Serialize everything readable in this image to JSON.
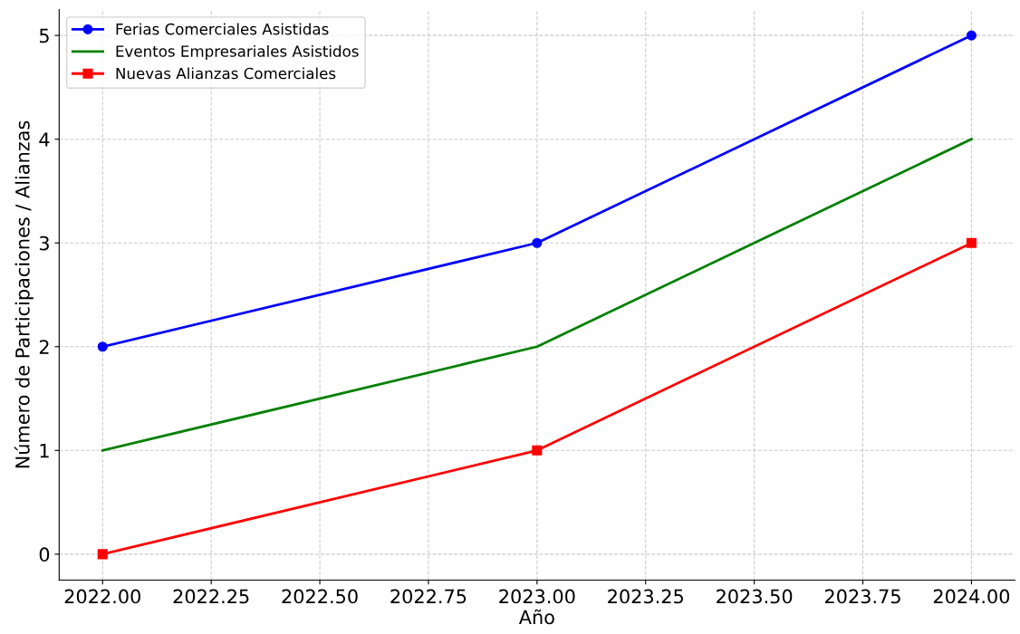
{
  "chart_data": {
    "type": "line",
    "xlabel": "Año",
    "ylabel": "Número de Participaciones / Alianzas",
    "x": [
      2022,
      2023,
      2024
    ],
    "series": [
      {
        "name": "Ferias Comerciales Asistidas",
        "color": "#0000ff",
        "marker": "circle",
        "values": [
          2,
          3,
          5
        ]
      },
      {
        "name": "Eventos Empresariales Asistidos",
        "color": "#008000",
        "marker": "none",
        "values": [
          1,
          2,
          4
        ]
      },
      {
        "name": "Nuevas Alianzas Comerciales",
        "color": "#ff0000",
        "marker": "square",
        "values": [
          0,
          1,
          3
        ]
      }
    ],
    "xlim": [
      2021.9,
      2024.1
    ],
    "xticks": [
      {
        "value": 2022,
        "label": "2022.00"
      },
      {
        "value": 2022.25,
        "label": "2022.25"
      },
      {
        "value": 2022.5,
        "label": "2022.50"
      },
      {
        "value": 2022.75,
        "label": "2022.75"
      },
      {
        "value": 2023,
        "label": "2023.00"
      },
      {
        "value": 2023.25,
        "label": "2023.25"
      },
      {
        "value": 2023.5,
        "label": "2023.50"
      },
      {
        "value": 2023.75,
        "label": "2023.75"
      },
      {
        "value": 2024,
        "label": "2024.00"
      }
    ],
    "ylim": [
      -0.25,
      5.25
    ],
    "yticks": [
      0,
      1,
      2,
      3,
      4,
      5
    ],
    "grid": true,
    "legend": "top left",
    "line_style": "solid"
  }
}
